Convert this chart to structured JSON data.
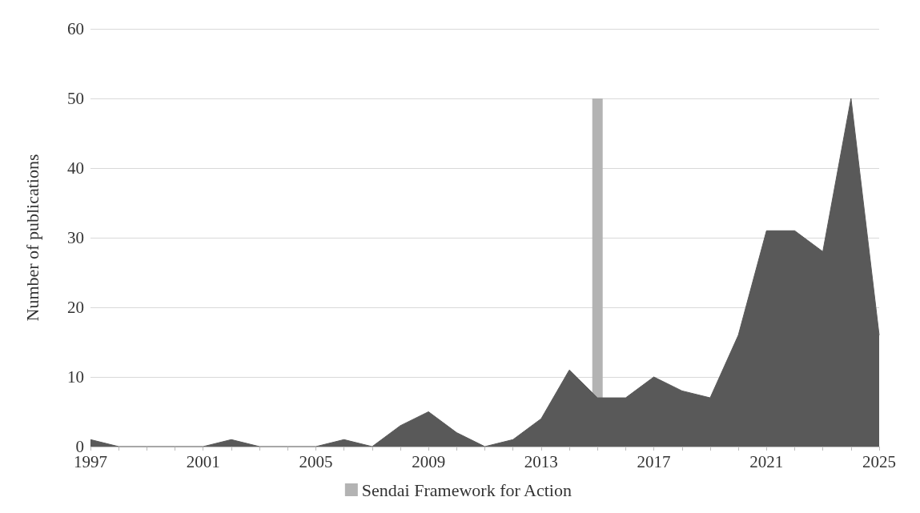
{
  "chart_data": {
    "type": "area",
    "ylabel": "Number of publications",
    "categories": [
      "1997",
      null,
      null,
      null,
      "2001",
      null,
      null,
      null,
      "2005",
      null,
      null,
      null,
      "2009",
      null,
      null,
      null,
      "2013",
      null,
      null,
      null,
      "2017",
      null,
      null,
      null,
      "2021",
      null,
      null,
      null,
      "2025"
    ],
    "series": [
      {
        "color": "#595959",
        "values": [
          1,
          0,
          0,
          0,
          0,
          1,
          0,
          0,
          0,
          1,
          0,
          3,
          5,
          2,
          0,
          1,
          4,
          11,
          7,
          7,
          10,
          8,
          7,
          16,
          31,
          31,
          28,
          50,
          16
        ]
      },
      {
        "type": "bar",
        "name": "Sendai Framework for Action",
        "color": "#b3b3b3",
        "values": [
          null,
          null,
          null,
          null,
          null,
          null,
          null,
          null,
          null,
          null,
          null,
          null,
          null,
          null,
          null,
          null,
          null,
          null,
          50,
          null,
          null,
          null,
          null,
          null,
          null,
          null,
          null,
          null,
          null
        ]
      }
    ],
    "ylim": [
      0,
      60
    ],
    "yticks": [
      0,
      10,
      20,
      30,
      40,
      50,
      60
    ],
    "grid": "y",
    "legend": "bottom"
  }
}
